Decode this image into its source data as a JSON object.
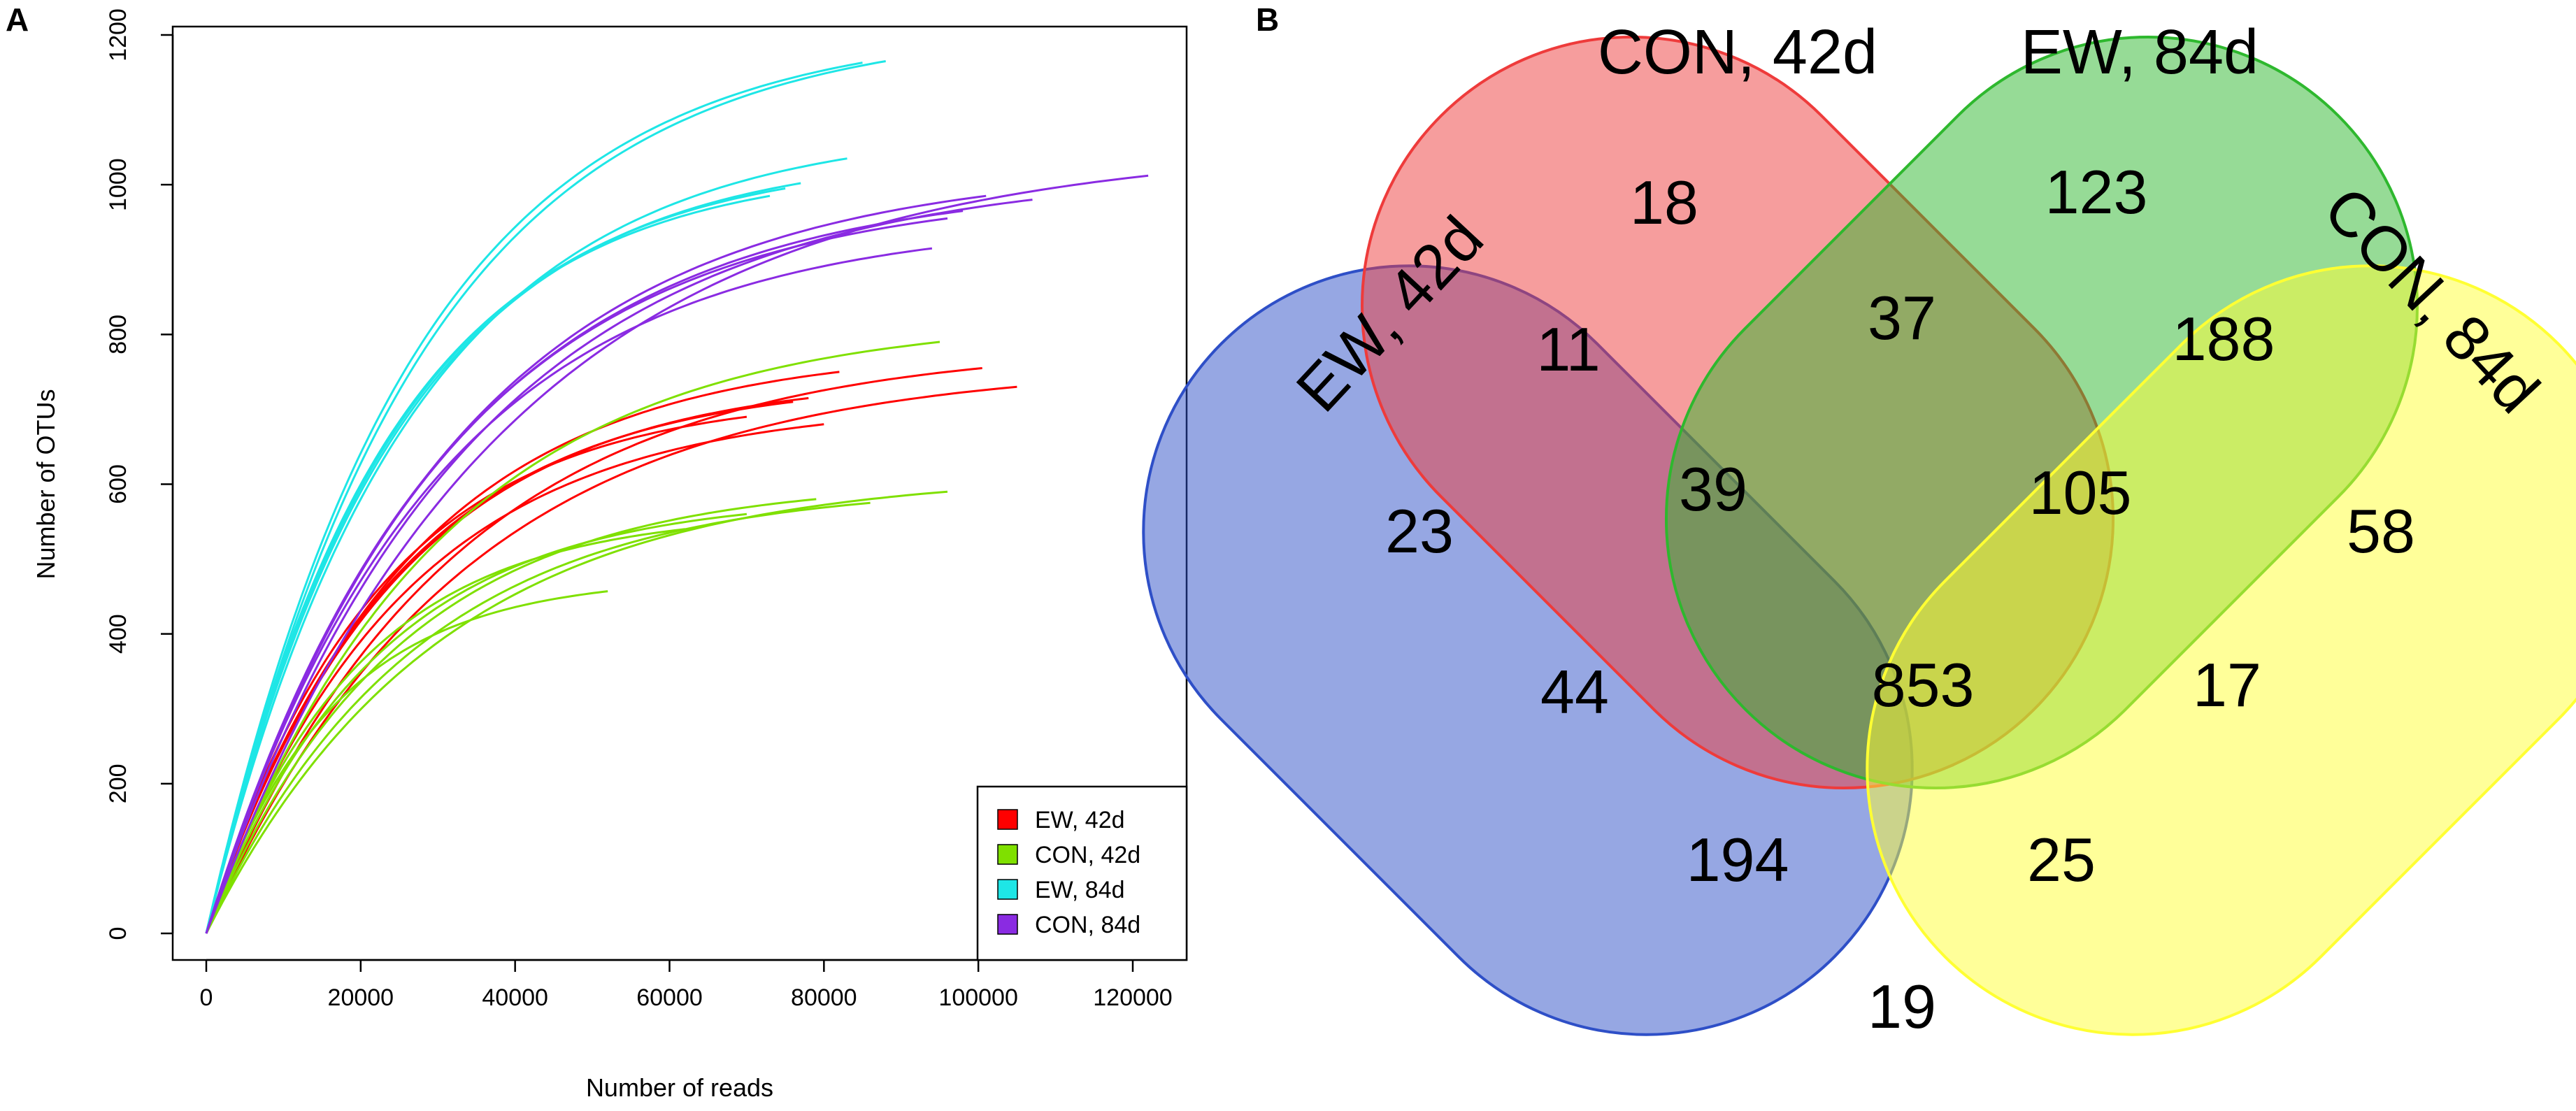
{
  "chart_data": [
    {
      "panel": "A",
      "type": "line",
      "xlabel": "Number of reads",
      "ylabel": "Number of OTUs",
      "xlim": [
        0,
        125000
      ],
      "ylim": [
        0,
        1200
      ],
      "xticks": [
        0,
        20000,
        40000,
        60000,
        80000,
        100000,
        120000
      ],
      "yticks": [
        0,
        200,
        400,
        600,
        800,
        1000,
        1200
      ],
      "legend": {
        "position": "bottom-right",
        "entries": [
          {
            "label": "EW, 42d",
            "color": "#ff0000"
          },
          {
            "label": "CON, 42d",
            "color": "#7fe000"
          },
          {
            "label": "EW, 84d",
            "color": "#1ee6e6"
          },
          {
            "label": "CON, 84d",
            "color": "#8a2be2"
          }
        ]
      },
      "series": [
        {
          "name": "EW, 42d",
          "color": "#ff0000",
          "curves": [
            {
              "max_reads": 82000,
              "max_otus": 750
            },
            {
              "max_reads": 105000,
              "max_otus": 730
            },
            {
              "max_reads": 100500,
              "max_otus": 755
            },
            {
              "max_reads": 78000,
              "max_otus": 715
            },
            {
              "max_reads": 70000,
              "max_otus": 690
            },
            {
              "max_reads": 80000,
              "max_otus": 680
            },
            {
              "max_reads": 76000,
              "max_otus": 710
            }
          ]
        },
        {
          "name": "CON, 42d",
          "color": "#7fe000",
          "curves": [
            {
              "max_reads": 95000,
              "max_otus": 790
            },
            {
              "max_reads": 96000,
              "max_otus": 590
            },
            {
              "max_reads": 79000,
              "max_otus": 580
            },
            {
              "max_reads": 86000,
              "max_otus": 575
            },
            {
              "max_reads": 62000,
              "max_otus": 540
            },
            {
              "max_reads": 52000,
              "max_otus": 457
            },
            {
              "max_reads": 70000,
              "max_otus": 560
            }
          ]
        },
        {
          "name": "EW, 84d",
          "color": "#1ee6e6",
          "curves": [
            {
              "max_reads": 88000,
              "max_otus": 1165
            },
            {
              "max_reads": 85000,
              "max_otus": 1163
            },
            {
              "max_reads": 83000,
              "max_otus": 1035
            },
            {
              "max_reads": 77000,
              "max_otus": 1002
            },
            {
              "max_reads": 75000,
              "max_otus": 995
            },
            {
              "max_reads": 73000,
              "max_otus": 985
            }
          ]
        },
        {
          "name": "CON, 84d",
          "color": "#8a2be2",
          "curves": [
            {
              "max_reads": 122000,
              "max_otus": 1012
            },
            {
              "max_reads": 107000,
              "max_otus": 980
            },
            {
              "max_reads": 101000,
              "max_otus": 985
            },
            {
              "max_reads": 98000,
              "max_otus": 965
            },
            {
              "max_reads": 94000,
              "max_otus": 915
            },
            {
              "max_reads": 96000,
              "max_otus": 955
            }
          ]
        }
      ]
    },
    {
      "panel": "B",
      "type": "venn",
      "sets": [
        {
          "label": "EW, 42d",
          "color": "#2e4fc7"
        },
        {
          "label": "CON, 42d",
          "color": "#ee3b3b"
        },
        {
          "label": "EW, 84d",
          "color": "#2eb82e"
        },
        {
          "label": "CON, 84d",
          "color": "#ffff33"
        }
      ],
      "regions": [
        {
          "sets": [
            "CON, 42d"
          ],
          "value": "18"
        },
        {
          "sets": [
            "EW, 84d"
          ],
          "value": "123"
        },
        {
          "sets": [
            "EW, 42d",
            "CON, 42d"
          ],
          "value": "11"
        },
        {
          "sets": [
            "CON, 42d",
            "EW, 84d"
          ],
          "value": "37"
        },
        {
          "sets": [
            "EW, 84d",
            "CON, 84d"
          ],
          "value": "188"
        },
        {
          "sets": [
            "EW, 42d"
          ],
          "value": "23"
        },
        {
          "sets": [
            "EW, 42d",
            "CON, 42d",
            "EW, 84d"
          ],
          "value": "39"
        },
        {
          "sets": [
            "CON, 42d",
            "EW, 84d",
            "CON, 84d"
          ],
          "value": "105"
        },
        {
          "sets": [
            "CON, 84d"
          ],
          "value": "58"
        },
        {
          "sets": [
            "EW, 42d",
            "EW, 84d"
          ],
          "value": "44"
        },
        {
          "sets": [
            "EW, 42d",
            "CON, 42d",
            "EW, 84d",
            "CON, 84d"
          ],
          "value": "853"
        },
        {
          "sets": [
            "CON, 42d",
            "CON, 84d"
          ],
          "value": "17"
        },
        {
          "sets": [
            "EW, 42d",
            "EW, 84d",
            "CON, 84d"
          ],
          "value": "194"
        },
        {
          "sets": [
            "EW, 42d",
            "CON, 42d",
            "CON, 84d"
          ],
          "value": "25"
        },
        {
          "sets": [
            "EW, 42d",
            "CON, 84d"
          ],
          "value": "19"
        }
      ]
    }
  ],
  "panel_labels": {
    "a": "A",
    "b": "B"
  }
}
